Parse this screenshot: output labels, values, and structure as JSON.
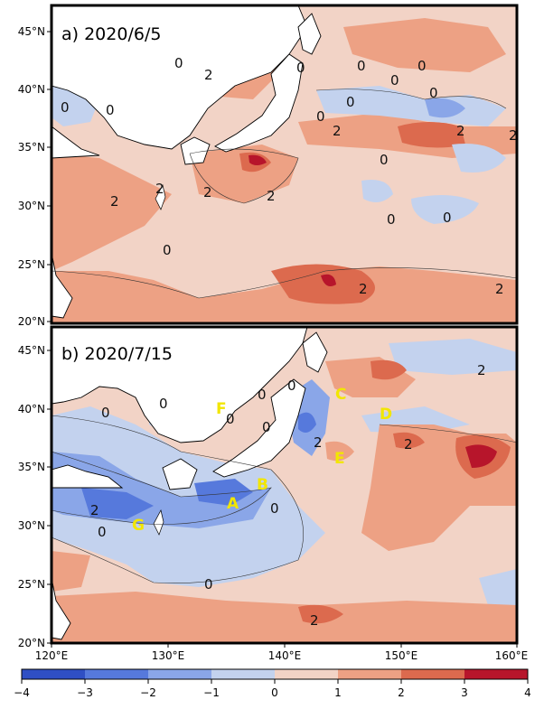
{
  "panels": [
    {
      "title": "a) 2020/6/5",
      "contour_labels": [
        "0",
        "2",
        "0",
        "0",
        "0",
        "0",
        "0",
        "0",
        "0",
        "2",
        "0",
        "2",
        "2",
        "2",
        "2",
        "0",
        "0",
        "0",
        "0",
        "2",
        "2",
        "2",
        "0",
        "2"
      ],
      "region_labels": []
    },
    {
      "title": "b) 2020/7/15",
      "contour_labels": [
        "0",
        "0",
        "0",
        "0",
        "0",
        "0",
        "2",
        "2",
        "2",
        "0",
        "0",
        "2",
        "0",
        "2"
      ],
      "region_labels": [
        "A",
        "B",
        "C",
        "D",
        "E",
        "F",
        "G"
      ]
    }
  ],
  "lat_ticks": [
    "20°N",
    "25°N",
    "30°N",
    "35°N",
    "40°N",
    "45°N"
  ],
  "lon_ticks": [
    "120°E",
    "130°E",
    "140°E",
    "150°E",
    "160°E"
  ],
  "colorbar": {
    "ticks": [
      "−4",
      "−3",
      "−2",
      "−1",
      "0",
      "1",
      "2",
      "3",
      "4"
    ],
    "colors": [
      "#2f4fc4",
      "#5679dc",
      "#8aa6e8",
      "#c3d2ee",
      "#f2d3c6",
      "#eda184",
      "#dc6a4e",
      "#b7152b"
    ]
  },
  "colors": {
    "land": "#ffffff",
    "coast": "#000000",
    "region_label": "#f2e600"
  }
}
